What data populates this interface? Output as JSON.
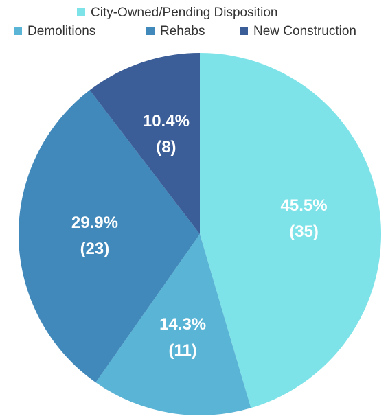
{
  "chart_data": {
    "type": "pie",
    "categories": [
      "City-Owned/Pending Disposition",
      "Demolitions",
      "Rehabs",
      "New Construction"
    ],
    "values": [
      35,
      11,
      23,
      8
    ],
    "value_labels": [
      [
        "45.5%",
        "(35)"
      ],
      [
        "14.3%",
        "(11)"
      ],
      [
        "29.9%",
        "(23)"
      ],
      [
        "10.4%",
        "(8)"
      ]
    ],
    "colors": [
      "#7de3e8",
      "#5ab4d6",
      "#4189bb",
      "#3b5d98"
    ],
    "legend": "top"
  }
}
